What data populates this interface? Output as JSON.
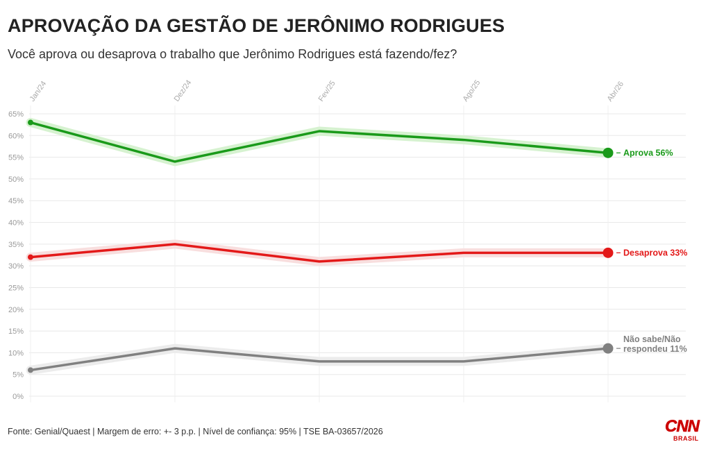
{
  "chart_data": {
    "type": "line",
    "title": "APROVAÇÃO DA GESTÃO DE JERÔNIMO RODRIGUES",
    "subtitle": "Você aprova ou desaprova o trabalho que Jerônimo Rodrigues está fazendo/fez?",
    "x": [
      "Jan/24",
      "Dez/24",
      "Fev/25",
      "Ago/25",
      "Abr/26"
    ],
    "y_ticks": [
      "0%",
      "5%",
      "10%",
      "15%",
      "20%",
      "25%",
      "30%",
      "35%",
      "40%",
      "45%",
      "50%",
      "55%",
      "60%",
      "65%"
    ],
    "ylim": [
      0,
      65
    ],
    "grid": true,
    "series": [
      {
        "name": "Aprova",
        "end_label": "Aprova 56%",
        "color": "#1a9a1a",
        "halo": "#d6f2d0",
        "values": [
          63,
          54,
          61,
          59,
          56
        ]
      },
      {
        "name": "Desaprova",
        "end_label": "Desaprova 33%",
        "color": "#e31919",
        "halo": "#f8dede",
        "values": [
          32,
          35,
          31,
          33,
          33
        ]
      },
      {
        "name": "Não sabe/Não respondeu",
        "end_label": "Não sabe/Não respondeu 11%",
        "end_label_lines": [
          "Não sabe/Não",
          "respondeu 11%"
        ],
        "color": "#808080",
        "halo": "#ececec",
        "values": [
          6,
          11,
          8,
          8,
          11
        ]
      }
    ]
  },
  "footer": {
    "source": "Fonte: Genial/Quaest | Margem de erro: +- 3 p.p. | Nível de confiança: 95% | TSE BA-03657/2026"
  },
  "logo": {
    "brand": "CNN",
    "sub": "BRASIL",
    "color": "#cc0000"
  }
}
